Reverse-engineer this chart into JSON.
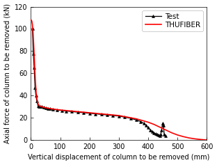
{
  "title": "",
  "xlabel": "Vertical displacement of column to be removed (mm)",
  "ylabel": "Axial force of column to be removed (kN)",
  "xlim": [
    0,
    600
  ],
  "ylim": [
    0,
    120
  ],
  "xticks": [
    0,
    100,
    200,
    300,
    400,
    500,
    600
  ],
  "yticks": [
    0,
    20,
    40,
    60,
    80,
    100,
    120
  ],
  "legend_loc": "upper right",
  "thufiber_color": "#ff0000",
  "test_color": "#000000",
  "thufiber_x": [
    0,
    1,
    3,
    5,
    7,
    9,
    11,
    13,
    15,
    18,
    21,
    25,
    30,
    36,
    43,
    50,
    60,
    72,
    85,
    100,
    120,
    140,
    160,
    180,
    200,
    220,
    240,
    260,
    280,
    300,
    320,
    340,
    360,
    380,
    400,
    420,
    440,
    460,
    480,
    500,
    520,
    540,
    560,
    580,
    600
  ],
  "thufiber_y": [
    108,
    108,
    107,
    104,
    98,
    88,
    77,
    65,
    54,
    42,
    36,
    32,
    30.5,
    30,
    29.5,
    29,
    28.5,
    28,
    27.5,
    27,
    26.5,
    26,
    25.5,
    25,
    24.5,
    24,
    23.5,
    23,
    22.5,
    22,
    21,
    20,
    19,
    17.5,
    16,
    14,
    11.5,
    9,
    6.5,
    4.5,
    3,
    1.8,
    1,
    0.4,
    0
  ],
  "test_x": [
    5,
    8,
    11,
    14,
    17,
    20,
    24,
    28,
    33,
    38,
    44,
    50,
    58,
    65,
    75,
    90,
    105,
    120,
    140,
    160,
    180,
    200,
    220,
    240,
    260,
    280,
    300,
    320,
    340,
    360,
    375,
    385,
    393,
    400,
    408,
    415,
    420,
    425,
    430,
    435,
    440,
    443,
    446,
    449,
    452,
    455,
    460
  ],
  "test_y": [
    100,
    78,
    65,
    47,
    40,
    35,
    31,
    30,
    30,
    30,
    29.5,
    29,
    28.5,
    28,
    27.5,
    27,
    26.5,
    26,
    25.5,
    25,
    24.5,
    24,
    23.5,
    23,
    22.5,
    22,
    21.5,
    20.5,
    19.5,
    18,
    16.5,
    15,
    13,
    11,
    9,
    7.5,
    6.5,
    5.5,
    5,
    4.5,
    4,
    5,
    9,
    15,
    13,
    5,
    4
  ],
  "xlabel_fontsize": 7,
  "ylabel_fontsize": 7,
  "tick_fontsize": 7,
  "legend_fontsize": 7.5,
  "fig_width": 3.12,
  "fig_height": 2.37,
  "dpi": 100
}
